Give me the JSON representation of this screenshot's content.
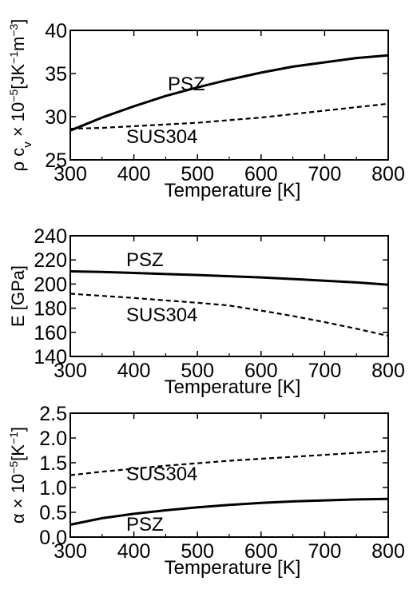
{
  "chart_data": [
    {
      "type": "line",
      "xlabel": "Temperature [K]",
      "ylabel": {
        "base": "ρ c",
        "sub": "v",
        "mid": " × 10",
        "exp": "−5",
        "unit": "[JK",
        "unit_exp1": "−1",
        "unit_mid": "m",
        "unit_exp2": "−3",
        "unit_close": "]"
      },
      "xlim": [
        300,
        800
      ],
      "ylim": [
        25,
        40
      ],
      "xticks": [
        300,
        400,
        500,
        600,
        700,
        800
      ],
      "yticks": [
        25,
        30,
        35,
        40
      ],
      "series": [
        {
          "name": "PSZ",
          "style": "solid",
          "x": [
            300,
            350,
            400,
            450,
            500,
            550,
            600,
            650,
            700,
            750,
            800
          ],
          "y": [
            28.4,
            29.9,
            31.2,
            32.4,
            33.4,
            34.3,
            35.1,
            35.8,
            36.3,
            36.8,
            37.1
          ]
        },
        {
          "name": "SUS304",
          "style": "dashed",
          "x": [
            300,
            350,
            400,
            450,
            500,
            550,
            600,
            650,
            700,
            750,
            800
          ],
          "y": [
            28.6,
            28.7,
            28.9,
            29.1,
            29.3,
            29.6,
            29.9,
            30.3,
            30.7,
            31.1,
            31.5
          ]
        }
      ]
    },
    {
      "type": "line",
      "xlabel": "Temperature [K]",
      "ylabel": {
        "text": "E [GPa]"
      },
      "xlim": [
        300,
        800
      ],
      "ylim": [
        140,
        240
      ],
      "xticks": [
        300,
        400,
        500,
        600,
        700,
        800
      ],
      "yticks": [
        140,
        160,
        180,
        200,
        220,
        240
      ],
      "series": [
        {
          "name": "PSZ",
          "style": "solid",
          "x": [
            300,
            350,
            400,
            450,
            500,
            550,
            600,
            650,
            700,
            750,
            800
          ],
          "y": [
            210.5,
            210.0,
            209.2,
            208.3,
            207.5,
            206.5,
            205.5,
            204.2,
            202.8,
            201.3,
            199.5
          ]
        },
        {
          "name": "SUS304",
          "style": "dashed",
          "x": [
            300,
            350,
            400,
            450,
            500,
            550,
            600,
            650,
            700,
            750,
            800
          ],
          "y": [
            192.0,
            190.2,
            188.5,
            186.4,
            184.5,
            182.2,
            178.0,
            173.5,
            168.5,
            163.0,
            157.0
          ]
        }
      ]
    },
    {
      "type": "line",
      "xlabel": "Temperature [K]",
      "ylabel": {
        "base": "α",
        "mid": " × 10",
        "exp": "−5",
        "unit": "[K",
        "unit_exp1": "−1",
        "unit_close": "]"
      },
      "xlim": [
        300,
        800
      ],
      "ylim": [
        0,
        2.5
      ],
      "xticks": [
        300,
        400,
        500,
        600,
        700,
        800
      ],
      "yticks": [
        0,
        0.5,
        1.0,
        1.5,
        2.0,
        2.5
      ],
      "series": [
        {
          "name": "SUS304",
          "style": "dashed",
          "x": [
            300,
            350,
            400,
            450,
            500,
            550,
            600,
            650,
            700,
            750,
            800
          ],
          "y": [
            1.25,
            1.32,
            1.38,
            1.44,
            1.49,
            1.54,
            1.58,
            1.62,
            1.66,
            1.7,
            1.74
          ]
        },
        {
          "name": "PSZ",
          "style": "solid",
          "x": [
            300,
            350,
            400,
            450,
            500,
            550,
            600,
            650,
            700,
            750,
            800
          ],
          "y": [
            0.25,
            0.38,
            0.47,
            0.54,
            0.6,
            0.65,
            0.69,
            0.72,
            0.74,
            0.76,
            0.77
          ]
        }
      ]
    }
  ]
}
